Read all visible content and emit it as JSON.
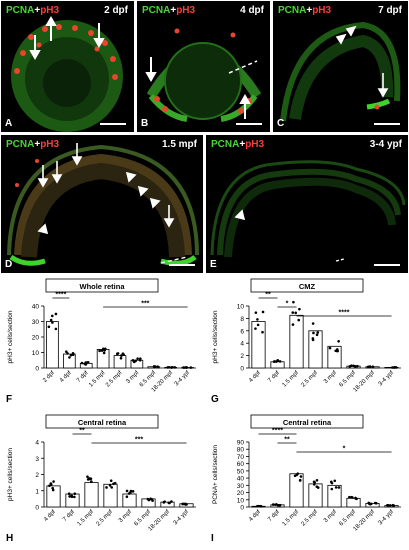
{
  "figure": {
    "micrographs": [
      {
        "letter": "A",
        "age": "2 dpf"
      },
      {
        "letter": "B",
        "age": "4 dpf"
      },
      {
        "letter": "C",
        "age": "7 dpf"
      },
      {
        "letter": "D",
        "age": "1.5 mpf"
      },
      {
        "letter": "E",
        "age": "3-4 ypf"
      }
    ],
    "stain": {
      "green": "PCNA",
      "plus": "+",
      "red": "pH3"
    },
    "colors": {
      "pcna": "#4cd43a",
      "ph3": "#ff3c3c",
      "background": "#000000"
    }
  },
  "chart_data": [
    {
      "panel": "F",
      "type": "bar",
      "title": "Whole retina",
      "ylabel": "pH3+ cells/section",
      "categories": [
        "2 dpf",
        "4 dpf",
        "7 dpf",
        "1.5 mpf",
        "2.5 mpf",
        "3 mpf",
        "6.5 mpf",
        "18-20 mpf",
        "3-4 ypf"
      ],
      "values": [
        30,
        9,
        3,
        12,
        8,
        5,
        0.8,
        0.4,
        0.3
      ],
      "ylim": [
        0,
        40
      ],
      "yticks": [
        0,
        10,
        20,
        30,
        40
      ],
      "significance": [
        {
          "label": "****",
          "from": 0,
          "to": 1
        },
        {
          "label": "***",
          "from": 3,
          "to": 8
        }
      ]
    },
    {
      "panel": "G",
      "type": "bar",
      "title": "CMZ",
      "ylabel": "pH3+ cells/section",
      "categories": [
        "4 dpf",
        "7 dpf",
        "1.5 mpf",
        "2.5 mpf",
        "3 mpf",
        "6.5 mpf",
        "18-20 mpf",
        "3-4 ypf"
      ],
      "values": [
        7.5,
        1,
        8.5,
        6,
        3.5,
        0.3,
        0.2,
        0.1
      ],
      "ylim": [
        0,
        10
      ],
      "yticks": [
        0,
        2,
        4,
        6,
        8,
        10
      ],
      "significance": [
        {
          "label": "**",
          "from": 0,
          "to": 1
        },
        {
          "label": "*",
          "from": 1,
          "to": 2
        },
        {
          "label": "****",
          "from": 2,
          "to": 7
        }
      ]
    },
    {
      "panel": "H",
      "type": "bar",
      "title": "Central retina",
      "ylabel": "pH3+ cells/section",
      "categories": [
        "4 dpf",
        "7 dpf",
        "1.5 mpf",
        "2.5 mpf",
        "3 mpf",
        "6.5 mpf",
        "18-20 mpf",
        "3-4 ypf"
      ],
      "values": [
        1.3,
        0.8,
        1.5,
        1.4,
        0.8,
        0.5,
        0.3,
        0.2
      ],
      "ylim": [
        0,
        4
      ],
      "yticks": [
        0,
        1,
        2,
        3,
        4
      ],
      "significance": [
        {
          "label": "**",
          "from": 1,
          "to": 2
        },
        {
          "label": "***",
          "from": 2,
          "to": 7
        }
      ]
    },
    {
      "panel": "I",
      "type": "bar",
      "title": "Central retina",
      "ylabel": "PCNA+ cells/section",
      "categories": [
        "4 dpf",
        "7 dpf",
        "1.5 mpf",
        "2.5 mpf",
        "3 mpf",
        "6.5 mpf",
        "18-20 mpf",
        "3-4 ypf"
      ],
      "values": [
        1,
        3,
        46,
        32,
        30,
        12,
        5,
        2
      ],
      "ylim": [
        0,
        90
      ],
      "yticks": [
        0,
        10,
        20,
        30,
        40,
        50,
        60,
        70,
        80,
        90
      ],
      "significance": [
        {
          "label": "****",
          "from": 0,
          "to": 2
        },
        {
          "label": "**",
          "from": 1,
          "to": 2
        },
        {
          "label": "*",
          "from": 2,
          "to": 7
        }
      ]
    }
  ]
}
